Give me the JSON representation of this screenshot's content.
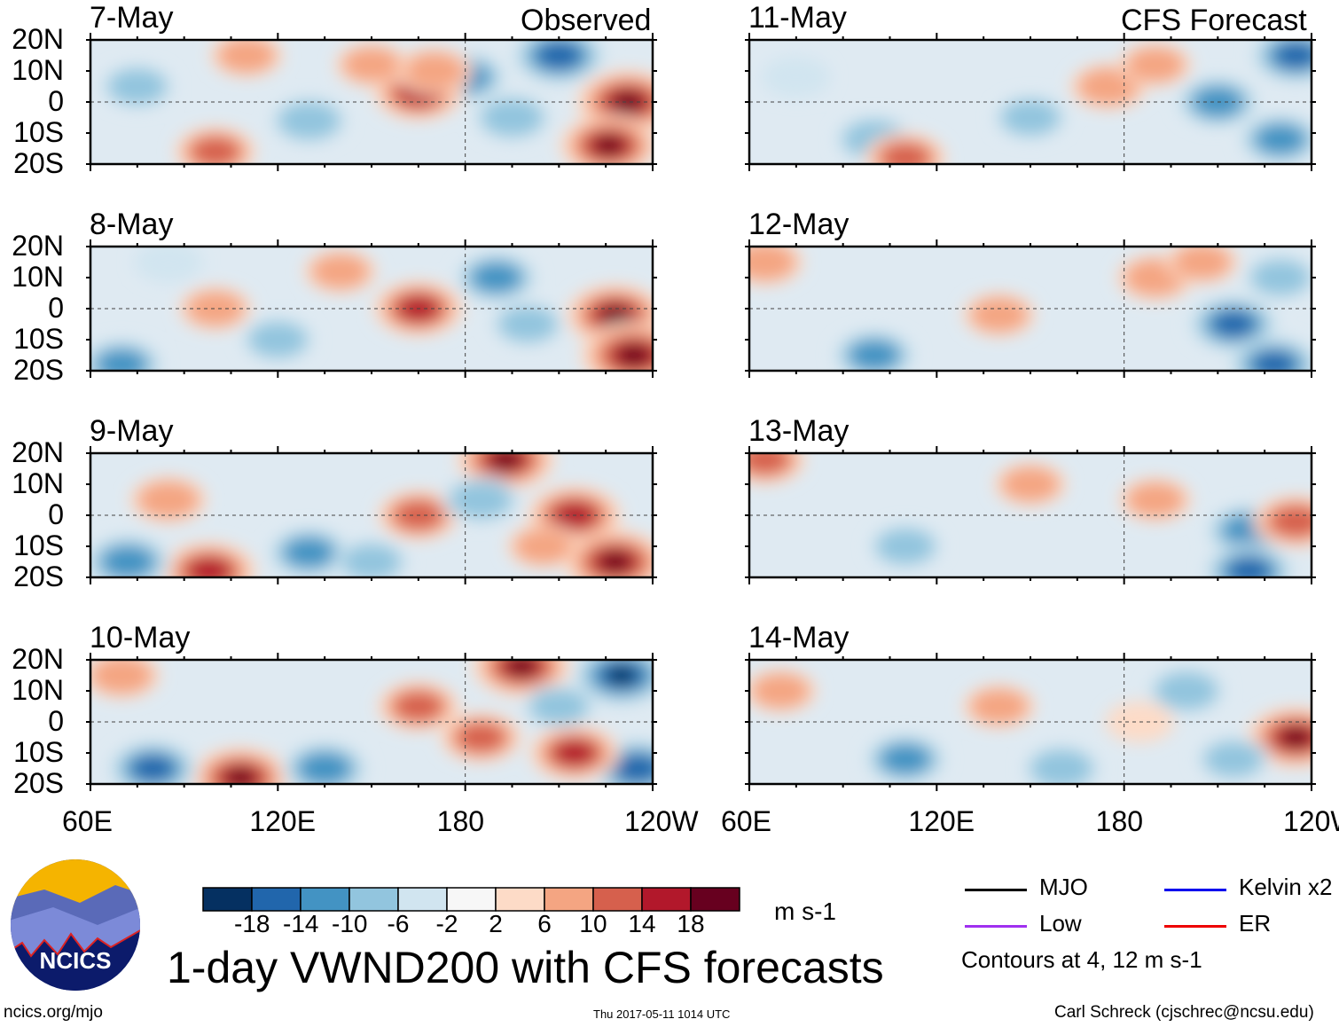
{
  "chart_data": {
    "type": "heatmap",
    "title": "1-day VWND200 with CFS forecasts",
    "units": "m s-1",
    "column_titles": [
      "Observed",
      "CFS Forecast"
    ],
    "lat_ticks": [
      "20N",
      "10N",
      "0",
      "10S",
      "20S"
    ],
    "lon_ticks": [
      "60E",
      "120E",
      "180",
      "120W"
    ],
    "lon_range": [
      60,
      240
    ],
    "lat_range": [
      -20,
      20
    ],
    "colorbar": {
      "levels": [
        "-18",
        "-14",
        "-10",
        "-6",
        "-2",
        "2",
        "6",
        "10",
        "14",
        "18"
      ],
      "colors": [
        "#053061",
        "#2166ac",
        "#4393c3",
        "#92c5de",
        "#d1e5f0",
        "#f7f7f7",
        "#fddbc7",
        "#f4a582",
        "#d6604d",
        "#b2182b",
        "#67001f"
      ]
    },
    "panels": [
      {
        "date": "7-May",
        "blobs": [
          [
            210,
            15,
            -16
          ],
          [
            232,
            0,
            20
          ],
          [
            226,
            -14,
            18
          ],
          [
            180,
            8,
            -10
          ],
          [
            195,
            -5,
            -8
          ],
          [
            165,
            3,
            14
          ],
          [
            170,
            10,
            8
          ],
          [
            100,
            -16,
            10
          ],
          [
            130,
            -6,
            -8
          ],
          [
            75,
            5,
            -6
          ],
          [
            150,
            12,
            6
          ],
          [
            110,
            15,
            6
          ]
        ]
      },
      {
        "date": "8-May",
        "blobs": [
          [
            228,
            -2,
            18
          ],
          [
            234,
            -15,
            22
          ],
          [
            165,
            0,
            14
          ],
          [
            190,
            10,
            -10
          ],
          [
            70,
            -18,
            -10
          ],
          [
            100,
            0,
            6
          ],
          [
            200,
            -5,
            -6
          ],
          [
            140,
            12,
            6
          ],
          [
            85,
            15,
            -4
          ],
          [
            120,
            -10,
            -6
          ]
        ]
      },
      {
        "date": "9-May",
        "blobs": [
          [
            215,
            0,
            16
          ],
          [
            228,
            -15,
            20
          ],
          [
            193,
            18,
            18
          ],
          [
            165,
            0,
            10
          ],
          [
            98,
            -18,
            16
          ],
          [
            72,
            -15,
            -12
          ],
          [
            130,
            -12,
            -10
          ],
          [
            185,
            5,
            -8
          ],
          [
            85,
            5,
            8
          ],
          [
            205,
            -10,
            6
          ],
          [
            150,
            -15,
            -6
          ]
        ]
      },
      {
        "date": "10-May",
        "blobs": [
          [
            230,
            15,
            -18
          ],
          [
            235,
            -15,
            -16
          ],
          [
            198,
            18,
            18
          ],
          [
            185,
            -5,
            10
          ],
          [
            108,
            -18,
            18
          ],
          [
            80,
            -15,
            -14
          ],
          [
            135,
            -15,
            -12
          ],
          [
            165,
            5,
            10
          ],
          [
            215,
            -10,
            14
          ],
          [
            70,
            15,
            8
          ],
          [
            210,
            5,
            -6
          ]
        ]
      },
      {
        "date": "11-May",
        "blobs": [
          [
            235,
            15,
            -14
          ],
          [
            210,
            0,
            -10
          ],
          [
            175,
            5,
            8
          ],
          [
            150,
            -5,
            -6
          ],
          [
            100,
            -12,
            -8
          ],
          [
            110,
            -18,
            10
          ],
          [
            230,
            -12,
            -10
          ],
          [
            75,
            8,
            -4
          ],
          [
            190,
            12,
            6
          ]
        ]
      },
      {
        "date": "12-May",
        "blobs": [
          [
            215,
            -5,
            -14
          ],
          [
            228,
            -18,
            -14
          ],
          [
            100,
            -15,
            -10
          ],
          [
            65,
            15,
            8
          ],
          [
            190,
            10,
            8
          ],
          [
            140,
            -2,
            6
          ],
          [
            205,
            15,
            6
          ],
          [
            230,
            10,
            -6
          ]
        ]
      },
      {
        "date": "13-May",
        "blobs": [
          [
            220,
            -5,
            -12
          ],
          [
            220,
            -18,
            -14
          ],
          [
            235,
            -2,
            12
          ],
          [
            65,
            18,
            10
          ],
          [
            190,
            5,
            6
          ],
          [
            110,
            -10,
            -6
          ],
          [
            150,
            10,
            6
          ]
        ]
      },
      {
        "date": "14-May",
        "blobs": [
          [
            235,
            -5,
            18
          ],
          [
            110,
            -12,
            -10
          ],
          [
            160,
            -15,
            -8
          ],
          [
            200,
            10,
            -8
          ],
          [
            70,
            10,
            6
          ],
          [
            185,
            0,
            4
          ],
          [
            140,
            5,
            6
          ],
          [
            215,
            -12,
            -6
          ]
        ]
      }
    ],
    "legend": [
      {
        "label": "MJO",
        "color": "#000000"
      },
      {
        "label": "Kelvin x2",
        "color": "#0000ee"
      },
      {
        "label": "Low",
        "color": "#a030f0"
      },
      {
        "label": "ER",
        "color": "#ee0000"
      }
    ],
    "contour_note": "Contours at 4, 12 m s-1"
  },
  "logo": "NCICS",
  "footer": {
    "left": "ncics.org/mjo",
    "center": "Thu 2017-05-11 1014 UTC",
    "right": "Carl Schreck (cjschrec@ncsu.edu)"
  }
}
